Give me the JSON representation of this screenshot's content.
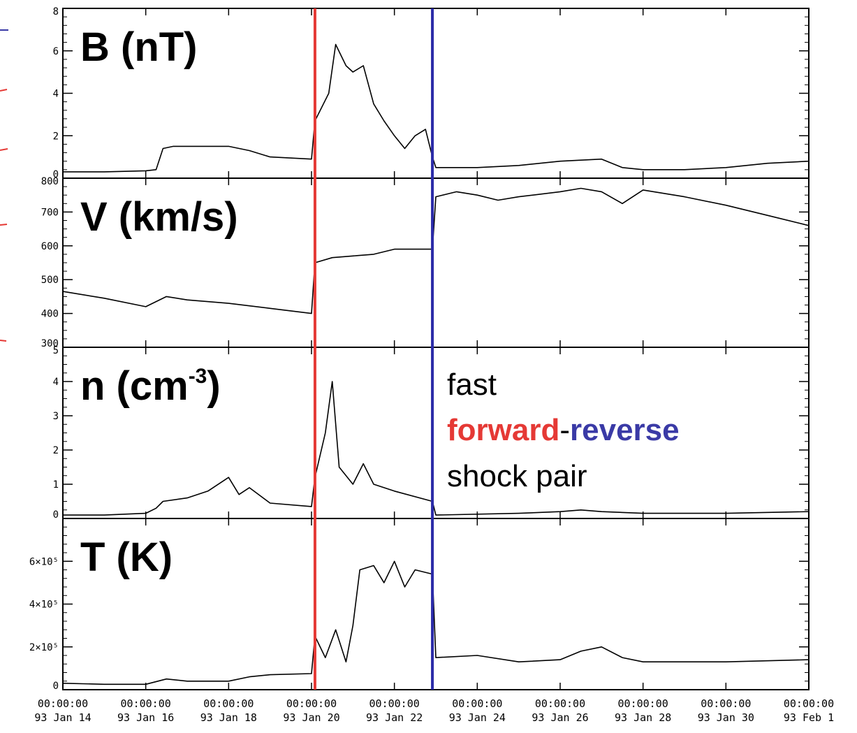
{
  "chart_data": {
    "type": "line",
    "x_axis": {
      "type": "date",
      "range": [
        "1993-01-14",
        "1993-02-01"
      ],
      "ticks": [
        {
          "date": "1993-01-14",
          "time": "00:00:00",
          "label": "93 Jan 14"
        },
        {
          "date": "1993-01-16",
          "time": "00:00:00",
          "label": "93 Jan 16"
        },
        {
          "date": "1993-01-18",
          "time": "00:00:00",
          "label": "93 Jan 18"
        },
        {
          "date": "1993-01-20",
          "time": "00:00:00",
          "label": "93 Jan 20"
        },
        {
          "date": "1993-01-22",
          "time": "00:00:00",
          "label": "93 Jan 22"
        },
        {
          "date": "1993-01-24",
          "time": "00:00:00",
          "label": "93 Jan 24"
        },
        {
          "date": "1993-01-26",
          "time": "00:00:00",
          "label": "93 Jan 26"
        },
        {
          "date": "1993-01-28",
          "time": "00:00:00",
          "label": "93 Jan 28"
        },
        {
          "date": "1993-01-30",
          "time": "00:00:00",
          "label": "93 Jan 30"
        },
        {
          "date": "1993-02-01",
          "time": "00:00:00",
          "label": "93 Feb 1"
        }
      ]
    },
    "panels": [
      {
        "id": "B",
        "label": "B (nT)",
        "ylim": [
          0,
          8
        ],
        "yticks": [
          {
            "v": 0,
            "t": "0"
          },
          {
            "v": 2,
            "t": "2"
          },
          {
            "v": 4,
            "t": "4"
          },
          {
            "v": 6,
            "t": "6"
          },
          {
            "v": 8,
            "t": "8"
          }
        ],
        "series": [
          {
            "x": "1993-01-14",
            "y": 0.3
          },
          {
            "x": "1993-01-15",
            "y": 0.3
          },
          {
            "x": "1993-01-16",
            "y": 0.35
          },
          {
            "x": "1993-01-16T06:00",
            "y": 0.4
          },
          {
            "x": "1993-01-16T10:00",
            "y": 1.4
          },
          {
            "x": "1993-01-16T16:00",
            "y": 1.5
          },
          {
            "x": "1993-01-17",
            "y": 1.5
          },
          {
            "x": "1993-01-18",
            "y": 1.5
          },
          {
            "x": "1993-01-18T12:00",
            "y": 1.3
          },
          {
            "x": "1993-01-19",
            "y": 1.0
          },
          {
            "x": "1993-01-20",
            "y": 0.9
          },
          {
            "x": "1993-01-20T02:00",
            "y": 2.7
          },
          {
            "x": "1993-01-20T10:00",
            "y": 4.0
          },
          {
            "x": "1993-01-20T14:00",
            "y": 6.3
          },
          {
            "x": "1993-01-20T20:00",
            "y": 5.3
          },
          {
            "x": "1993-01-21",
            "y": 5.0
          },
          {
            "x": "1993-01-21T06:00",
            "y": 5.3
          },
          {
            "x": "1993-01-21T12:00",
            "y": 3.5
          },
          {
            "x": "1993-01-21T18:00",
            "y": 2.7
          },
          {
            "x": "1993-01-22",
            "y": 2.0
          },
          {
            "x": "1993-01-22T06:00",
            "y": 1.4
          },
          {
            "x": "1993-01-22T12:00",
            "y": 2.0
          },
          {
            "x": "1993-01-22T18:00",
            "y": 2.3
          },
          {
            "x": "1993-01-22T22:00",
            "y": 1.0
          },
          {
            "x": "1993-01-23",
            "y": 0.5
          },
          {
            "x": "1993-01-24",
            "y": 0.5
          },
          {
            "x": "1993-01-25",
            "y": 0.6
          },
          {
            "x": "1993-01-26",
            "y": 0.8
          },
          {
            "x": "1993-01-27",
            "y": 0.9
          },
          {
            "x": "1993-01-27T12:00",
            "y": 0.5
          },
          {
            "x": "1993-01-28",
            "y": 0.4
          },
          {
            "x": "1993-01-29",
            "y": 0.4
          },
          {
            "x": "1993-01-30",
            "y": 0.5
          },
          {
            "x": "1993-01-31",
            "y": 0.7
          },
          {
            "x": "1993-02-01",
            "y": 0.8
          }
        ]
      },
      {
        "id": "V",
        "label": "V (km/s)",
        "ylim": [
          300,
          800
        ],
        "yticks": [
          {
            "v": 300,
            "t": "300"
          },
          {
            "v": 400,
            "t": "400"
          },
          {
            "v": 500,
            "t": "500"
          },
          {
            "v": 600,
            "t": "600"
          },
          {
            "v": 700,
            "t": "700"
          },
          {
            "v": 800,
            "t": "800"
          }
        ],
        "series": [
          {
            "x": "1993-01-14",
            "y": 465
          },
          {
            "x": "1993-01-15",
            "y": 445
          },
          {
            "x": "1993-01-16",
            "y": 420
          },
          {
            "x": "1993-01-16T12:00",
            "y": 450
          },
          {
            "x": "1993-01-17",
            "y": 440
          },
          {
            "x": "1993-01-18",
            "y": 430
          },
          {
            "x": "1993-01-19",
            "y": 415
          },
          {
            "x": "1993-01-20",
            "y": 400
          },
          {
            "x": "1993-01-20T02:00",
            "y": 550
          },
          {
            "x": "1993-01-20T12:00",
            "y": 565
          },
          {
            "x": "1993-01-21",
            "y": 570
          },
          {
            "x": "1993-01-21T12:00",
            "y": 575
          },
          {
            "x": "1993-01-22",
            "y": 590
          },
          {
            "x": "1993-01-22T22:00",
            "y": 590
          },
          {
            "x": "1993-01-23",
            "y": 745
          },
          {
            "x": "1993-01-23T12:00",
            "y": 760
          },
          {
            "x": "1993-01-24",
            "y": 750
          },
          {
            "x": "1993-01-24T12:00",
            "y": 735
          },
          {
            "x": "1993-01-25",
            "y": 745
          },
          {
            "x": "1993-01-26",
            "y": 760
          },
          {
            "x": "1993-01-26T12:00",
            "y": 770
          },
          {
            "x": "1993-01-27",
            "y": 760
          },
          {
            "x": "1993-01-27T12:00",
            "y": 725
          },
          {
            "x": "1993-01-28",
            "y": 765
          },
          {
            "x": "1993-01-29",
            "y": 745
          },
          {
            "x": "1993-01-30",
            "y": 720
          },
          {
            "x": "1993-01-31",
            "y": 690
          },
          {
            "x": "1993-02-01",
            "y": 660
          }
        ]
      },
      {
        "id": "n",
        "label": "n (cm",
        "label_sup": "-3",
        "label_close": ")",
        "ylim": [
          0,
          5
        ],
        "yticks": [
          {
            "v": 0,
            "t": "0"
          },
          {
            "v": 1,
            "t": "1"
          },
          {
            "v": 2,
            "t": "2"
          },
          {
            "v": 3,
            "t": "3"
          },
          {
            "v": 4,
            "t": "4"
          },
          {
            "v": 5,
            "t": "5"
          }
        ],
        "series": [
          {
            "x": "1993-01-14",
            "y": 0.1
          },
          {
            "x": "1993-01-15",
            "y": 0.1
          },
          {
            "x": "1993-01-16",
            "y": 0.15
          },
          {
            "x": "1993-01-16T06:00",
            "y": 0.3
          },
          {
            "x": "1993-01-16T10:00",
            "y": 0.5
          },
          {
            "x": "1993-01-17",
            "y": 0.6
          },
          {
            "x": "1993-01-17T12:00",
            "y": 0.8
          },
          {
            "x": "1993-01-18",
            "y": 1.2
          },
          {
            "x": "1993-01-18T06:00",
            "y": 0.7
          },
          {
            "x": "1993-01-18T12:00",
            "y": 0.9
          },
          {
            "x": "1993-01-19",
            "y": 0.45
          },
          {
            "x": "1993-01-20",
            "y": 0.35
          },
          {
            "x": "1993-01-20T02:00",
            "y": 1.2
          },
          {
            "x": "1993-01-20T08:00",
            "y": 2.5
          },
          {
            "x": "1993-01-20T12:00",
            "y": 4.0
          },
          {
            "x": "1993-01-20T16:00",
            "y": 1.5
          },
          {
            "x": "1993-01-21",
            "y": 1.0
          },
          {
            "x": "1993-01-21T06:00",
            "y": 1.6
          },
          {
            "x": "1993-01-21T12:00",
            "y": 1.0
          },
          {
            "x": "1993-01-22",
            "y": 0.8
          },
          {
            "x": "1993-01-22T22:00",
            "y": 0.5
          },
          {
            "x": "1993-01-23",
            "y": 0.1
          },
          {
            "x": "1993-01-25",
            "y": 0.15
          },
          {
            "x": "1993-01-26",
            "y": 0.2
          },
          {
            "x": "1993-01-26T12:00",
            "y": 0.25
          },
          {
            "x": "1993-01-27",
            "y": 0.2
          },
          {
            "x": "1993-01-28",
            "y": 0.15
          },
          {
            "x": "1993-01-30",
            "y": 0.15
          },
          {
            "x": "1993-02-01",
            "y": 0.2
          }
        ]
      },
      {
        "id": "T",
        "label": "T (K)",
        "ylim": [
          0,
          800000
        ],
        "yticks": [
          {
            "v": 0,
            "t": "0"
          },
          {
            "v": 200000,
            "t": "2×10⁵"
          },
          {
            "v": 400000,
            "t": "4×10⁵"
          },
          {
            "v": 600000,
            "t": "6×10⁵"
          }
        ],
        "series": [
          {
            "x": "1993-01-14",
            "y": 30000
          },
          {
            "x": "1993-01-15",
            "y": 25000
          },
          {
            "x": "1993-01-16",
            "y": 25000
          },
          {
            "x": "1993-01-16T12:00",
            "y": 50000
          },
          {
            "x": "1993-01-17",
            "y": 40000
          },
          {
            "x": "1993-01-18",
            "y": 40000
          },
          {
            "x": "1993-01-18T12:00",
            "y": 60000
          },
          {
            "x": "1993-01-19",
            "y": 70000
          },
          {
            "x": "1993-01-20",
            "y": 75000
          },
          {
            "x": "1993-01-20T02:00",
            "y": 250000
          },
          {
            "x": "1993-01-20T08:00",
            "y": 150000
          },
          {
            "x": "1993-01-20T14:00",
            "y": 280000
          },
          {
            "x": "1993-01-20T20:00",
            "y": 130000
          },
          {
            "x": "1993-01-21",
            "y": 300000
          },
          {
            "x": "1993-01-21T04:00",
            "y": 560000
          },
          {
            "x": "1993-01-21T12:00",
            "y": 580000
          },
          {
            "x": "1993-01-21T18:00",
            "y": 500000
          },
          {
            "x": "1993-01-22",
            "y": 600000
          },
          {
            "x": "1993-01-22T06:00",
            "y": 480000
          },
          {
            "x": "1993-01-22T12:00",
            "y": 560000
          },
          {
            "x": "1993-01-22T22:00",
            "y": 540000
          },
          {
            "x": "1993-01-23",
            "y": 150000
          },
          {
            "x": "1993-01-24",
            "y": 160000
          },
          {
            "x": "1993-01-25",
            "y": 130000
          },
          {
            "x": "1993-01-26",
            "y": 140000
          },
          {
            "x": "1993-01-26T12:00",
            "y": 180000
          },
          {
            "x": "1993-01-27",
            "y": 200000
          },
          {
            "x": "1993-01-27T12:00",
            "y": 150000
          },
          {
            "x": "1993-01-28",
            "y": 130000
          },
          {
            "x": "1993-01-30",
            "y": 130000
          },
          {
            "x": "1993-02-01",
            "y": 140000
          }
        ]
      }
    ],
    "markers": [
      {
        "id": "forward-shock",
        "x": "1993-01-20T02:00",
        "color": "#e53935"
      },
      {
        "id": "reverse-shock",
        "x": "1993-01-22T22:00",
        "color": "#2b2ba8"
      }
    ],
    "annotation": {
      "line1": "fast",
      "forward": "forward",
      "dash": "-",
      "reverse": "reverse",
      "line3": "shock pair"
    },
    "colors": {
      "forward": "#e53935",
      "reverse": "#3a3aa6",
      "data": "#000000"
    }
  }
}
